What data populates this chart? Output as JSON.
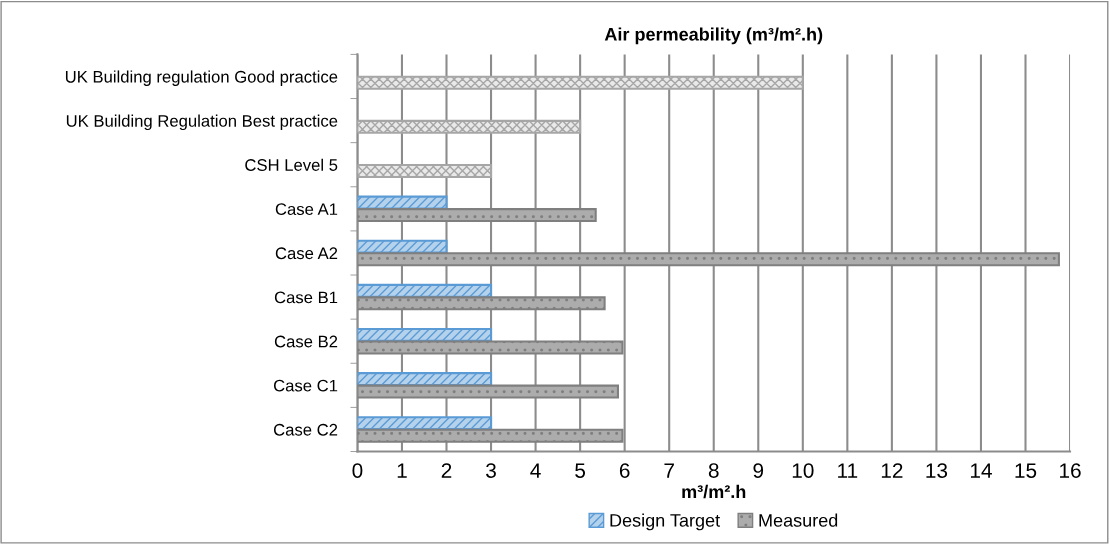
{
  "chart_data": {
    "type": "bar",
    "orientation": "horizontal",
    "title": "Air permeability (m³/m².h)",
    "xlabel": "m³/m².h",
    "categories": [
      "UK Building regulation Good practice",
      "UK Building Regulation Best practice",
      "CSH Level 5",
      "Case A1",
      "Case A2",
      "Case B1",
      "Case B2",
      "Case C1",
      "Case C2"
    ],
    "series": [
      {
        "name": "Design Target",
        "color": "#5b9bd5",
        "values": [
          null,
          null,
          null,
          2,
          2,
          3,
          3,
          3,
          3
        ]
      },
      {
        "name": "Measured",
        "color": "#7f7f7f",
        "values": [
          null,
          null,
          null,
          5.35,
          15.75,
          5.55,
          5.95,
          5.85,
          5.95
        ]
      },
      {
        "color": "#a6a6a6",
        "values": [
          10,
          5,
          3,
          null,
          null,
          null,
          null,
          null,
          null
        ]
      }
    ],
    "xlim": [
      0,
      16
    ],
    "xticks": [
      0,
      1,
      2,
      3,
      4,
      5,
      6,
      7,
      8,
      9,
      10,
      11,
      12,
      13,
      14,
      15,
      16
    ],
    "grid": "x",
    "legend": "bottom"
  }
}
